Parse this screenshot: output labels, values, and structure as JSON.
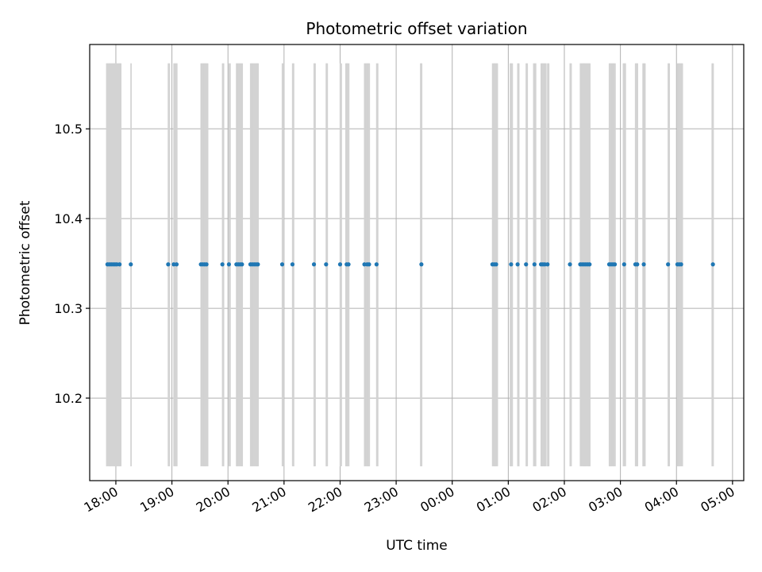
{
  "chart_data": {
    "type": "scatter",
    "title": "Photometric offset variation",
    "xlabel": "UTC time",
    "ylabel": "Photometric offset",
    "x_unit": "UTC time (HH:MM)",
    "xlim": [
      "17:32",
      "05:12"
    ],
    "ylim": [
      10.108,
      10.594
    ],
    "grid": true,
    "colors": {
      "points": "#1f77b4",
      "observation_bars": "#d3d3d3",
      "grid": "#b0b0b0"
    },
    "x_tick_labels": [
      "18:00",
      "19:00",
      "20:00",
      "21:00",
      "22:00",
      "23:00",
      "00:00",
      "01:00",
      "02:00",
      "03:00",
      "04:00",
      "05:00"
    ],
    "y_ticks": [
      10.2,
      10.3,
      10.4,
      10.5
    ],
    "y_tick_labels": [
      "10.2",
      "10.3",
      "10.4",
      "10.5"
    ],
    "observation_bars": {
      "y_range": [
        10.124,
        10.573
      ],
      "times": [
        "17:50",
        "17:51",
        "17:52",
        "17:53",
        "17:54",
        "17:55",
        "17:56",
        "17:57",
        "17:58",
        "17:59",
        "18:00",
        "18:01",
        "18:02",
        "18:03",
        "18:04",
        "18:05",
        "18:16",
        "18:56",
        "18:57",
        "19:02",
        "19:03",
        "19:04",
        "19:05",
        "19:31",
        "19:32",
        "19:33",
        "19:34",
        "19:35",
        "19:36",
        "19:37",
        "19:38",
        "19:54",
        "19:55",
        "20:01",
        "20:02",
        "20:09",
        "20:10",
        "20:11",
        "20:12",
        "20:13",
        "20:14",
        "20:15",
        "20:24",
        "20:25",
        "20:26",
        "20:27",
        "20:28",
        "20:29",
        "20:30",
        "20:31",
        "20:32",
        "20:58",
        "20:59",
        "21:09",
        "21:10",
        "21:32",
        "21:33",
        "21:45",
        "21:46",
        "22:00",
        "22:01",
        "22:06",
        "22:07",
        "22:08",
        "22:09",
        "22:26",
        "22:27",
        "22:28",
        "22:29",
        "22:30",
        "22:31",
        "22:39",
        "22:40",
        "23:26",
        "23:27",
        "00:43",
        "00:44",
        "00:45",
        "00:46",
        "00:47",
        "00:48",
        "01:02",
        "01:03",
        "01:04",
        "01:10",
        "01:11",
        "01:19",
        "01:20",
        "01:27",
        "01:28",
        "01:29",
        "01:35",
        "01:36",
        "01:37",
        "01:38",
        "01:39",
        "01:40",
        "01:42",
        "01:43",
        "02:06",
        "02:07",
        "02:17",
        "02:18",
        "02:19",
        "02:20",
        "02:21",
        "02:22",
        "02:23",
        "02:24",
        "02:25",
        "02:26",
        "02:27",
        "02:48",
        "02:49",
        "02:50",
        "02:51",
        "02:52",
        "02:53",
        "02:54",
        "03:03",
        "03:04",
        "03:05",
        "03:16",
        "03:17",
        "03:18",
        "03:24",
        "03:25",
        "03:26",
        "03:51",
        "03:52",
        "04:01",
        "04:02",
        "04:03",
        "04:04",
        "04:05",
        "04:06",
        "04:38",
        "04:39"
      ]
    },
    "series": [
      {
        "y": 10.349,
        "x": [
          "17:51",
          "17:53",
          "17:55",
          "17:57",
          "17:59",
          "18:01",
          "18:04",
          "18:16",
          "18:56",
          "19:02",
          "19:05",
          "19:31",
          "19:33",
          "19:35",
          "19:37",
          "19:54",
          "20:01",
          "20:09",
          "20:11",
          "20:13",
          "20:15",
          "20:24",
          "20:26",
          "20:28",
          "20:30",
          "20:32",
          "20:58",
          "21:09",
          "21:32",
          "21:45",
          "22:00",
          "22:07",
          "22:09",
          "22:26",
          "22:29",
          "22:31",
          "22:39",
          "23:27",
          "00:43",
          "00:45",
          "00:47",
          "01:03",
          "01:10",
          "01:19",
          "01:28",
          "01:35",
          "01:37",
          "01:39",
          "01:42",
          "02:06",
          "02:17",
          "02:19",
          "02:21",
          "02:23",
          "02:25",
          "02:27",
          "02:48",
          "02:50",
          "02:52",
          "02:54",
          "03:04",
          "03:16",
          "03:18",
          "03:25",
          "03:51",
          "04:01",
          "04:03",
          "04:05",
          "04:39"
        ]
      }
    ]
  }
}
